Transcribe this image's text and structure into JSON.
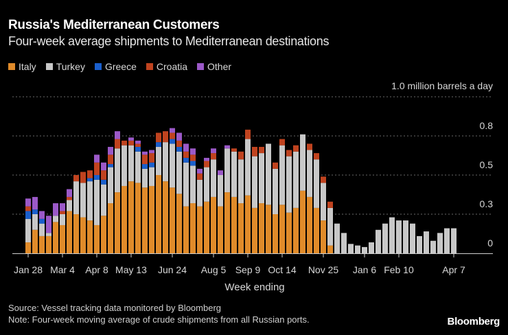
{
  "title": "Russia's Mediterranean Customers",
  "subtitle": "Four-week average shipments to Mediterranean destinations",
  "unit_label": "1.0 million barrels a day",
  "x_axis_title": "Week ending",
  "source": "Source: Vessel tracking data monitored by Bloomberg",
  "note": "Note: Four-week moving average of crude shipments from all Russian ports.",
  "brand": "Bloomberg",
  "chart_data": {
    "type": "bar",
    "stacked": true,
    "title": "Russia's Mediterranean Customers",
    "subtitle": "Four-week average shipments to Mediterranean destinations",
    "xlabel": "Week ending",
    "ylabel": "million barrels a day",
    "ylim": [
      0,
      1.0
    ],
    "y_ticks": [
      {
        "value": 0,
        "label": "0"
      },
      {
        "value": 0.25,
        "label": "0.3"
      },
      {
        "value": 0.5,
        "label": "0.5"
      },
      {
        "value": 0.75,
        "label": "0.8"
      },
      {
        "value": 1.0,
        "label": "1.0 million barrels a day"
      }
    ],
    "grid": true,
    "legend_position": "top-left",
    "x_tick_labels": [
      {
        "index": 0,
        "label": "Jan 28"
      },
      {
        "index": 5,
        "label": "Mar 4"
      },
      {
        "index": 10,
        "label": "Apr 8"
      },
      {
        "index": 15,
        "label": "May 13"
      },
      {
        "index": 21,
        "label": "Jun 24"
      },
      {
        "index": 27,
        "label": "Aug 5"
      },
      {
        "index": 32,
        "label": "Sep 9"
      },
      {
        "index": 37,
        "label": "Oct 14"
      },
      {
        "index": 43,
        "label": "Nov 25"
      },
      {
        "index": 49,
        "label": "Jan 6"
      },
      {
        "index": 54,
        "label": "Feb 10"
      },
      {
        "index": 62,
        "label": "Apr 7"
      }
    ],
    "series": [
      {
        "name": "Italy",
        "color": "#e08b2a",
        "values": [
          0.07,
          0.15,
          0.11,
          0.11,
          0.2,
          0.18,
          0.27,
          0.25,
          0.23,
          0.21,
          0.18,
          0.24,
          0.32,
          0.39,
          0.43,
          0.46,
          0.45,
          0.42,
          0.43,
          0.5,
          0.46,
          0.42,
          0.38,
          0.3,
          0.32,
          0.3,
          0.33,
          0.36,
          0.3,
          0.39,
          0.36,
          0.32,
          0.37,
          0.29,
          0.32,
          0.31,
          0.25,
          0.31,
          0.26,
          0.29,
          0.4,
          0.36,
          0.29,
          0.21,
          0.05,
          0,
          0,
          0,
          0,
          0,
          0,
          0,
          0,
          0,
          0,
          0,
          0,
          0,
          0,
          0,
          0,
          0,
          0
        ]
      },
      {
        "name": "Turkey",
        "color": "#c8c8c8",
        "values": [
          0.15,
          0.1,
          0.08,
          0.02,
          0.04,
          0.07,
          0.07,
          0.21,
          0.22,
          0.25,
          0.29,
          0.2,
          0.23,
          0.28,
          0.26,
          0.23,
          0.2,
          0.12,
          0.12,
          0.18,
          0.25,
          0.28,
          0.27,
          0.28,
          0.24,
          0.17,
          0.22,
          0.24,
          0.2,
          0.28,
          0.29,
          0.28,
          0.36,
          0.33,
          0.32,
          0.39,
          0.29,
          0.38,
          0.36,
          0.36,
          0.36,
          0.3,
          0.31,
          0.24,
          0.24,
          0.19,
          0.13,
          0.06,
          0.05,
          0.04,
          0.07,
          0.15,
          0.19,
          0.23,
          0.21,
          0.21,
          0.19,
          0.11,
          0.14,
          0.08,
          0.13,
          0.16,
          0.16
        ]
      },
      {
        "name": "Greece",
        "color": "#1a5fcc",
        "values": [
          0.05,
          0.03,
          0.03,
          0,
          0,
          0,
          0,
          0,
          0,
          0.02,
          0.03,
          0.03,
          0.02,
          0,
          0,
          0,
          0.03,
          0.03,
          0.03,
          0.03,
          0,
          0.03,
          0.03,
          0.03,
          0.03,
          0,
          0,
          0,
          0,
          0,
          0,
          0,
          0,
          0,
          0,
          0,
          0,
          0,
          0,
          0,
          0,
          0,
          0,
          0,
          0,
          0,
          0,
          0,
          0,
          0,
          0,
          0,
          0,
          0,
          0,
          0,
          0,
          0,
          0,
          0,
          0,
          0,
          0
        ]
      },
      {
        "name": "Croatia",
        "color": "#c0431f",
        "values": [
          0.03,
          0,
          0,
          0,
          0,
          0.02,
          0.02,
          0.04,
          0.07,
          0.05,
          0.08,
          0.06,
          0.06,
          0.06,
          0.03,
          0.03,
          0.02,
          0.06,
          0.06,
          0.06,
          0.07,
          0.04,
          0.04,
          0.04,
          0.04,
          0.04,
          0.04,
          0.04,
          0,
          0,
          0.02,
          0.05,
          0.06,
          0.06,
          0.04,
          0,
          0.04,
          0.04,
          0.04,
          0.04,
          0,
          0.04,
          0.04,
          0.04,
          0.04,
          0,
          0,
          0,
          0,
          0,
          0,
          0,
          0,
          0,
          0,
          0,
          0,
          0,
          0,
          0,
          0,
          0,
          0
        ]
      },
      {
        "name": "Other",
        "color": "#9b59c8",
        "values": [
          0.05,
          0.08,
          0.05,
          0.11,
          0.08,
          0.05,
          0.05,
          0,
          0,
          0,
          0.05,
          0.05,
          0.05,
          0.05,
          0,
          0.02,
          0.02,
          0.02,
          0.02,
          0,
          0,
          0.03,
          0.05,
          0.05,
          0.04,
          0.03,
          0.02,
          0.03,
          0.03,
          0.02,
          0,
          0,
          0,
          0,
          0,
          0,
          0,
          0,
          0,
          0,
          0,
          0,
          0,
          0,
          0,
          0,
          0,
          0,
          0,
          0,
          0,
          0,
          0,
          0,
          0,
          0,
          0,
          0,
          0,
          0,
          0,
          0,
          0
        ]
      }
    ]
  }
}
